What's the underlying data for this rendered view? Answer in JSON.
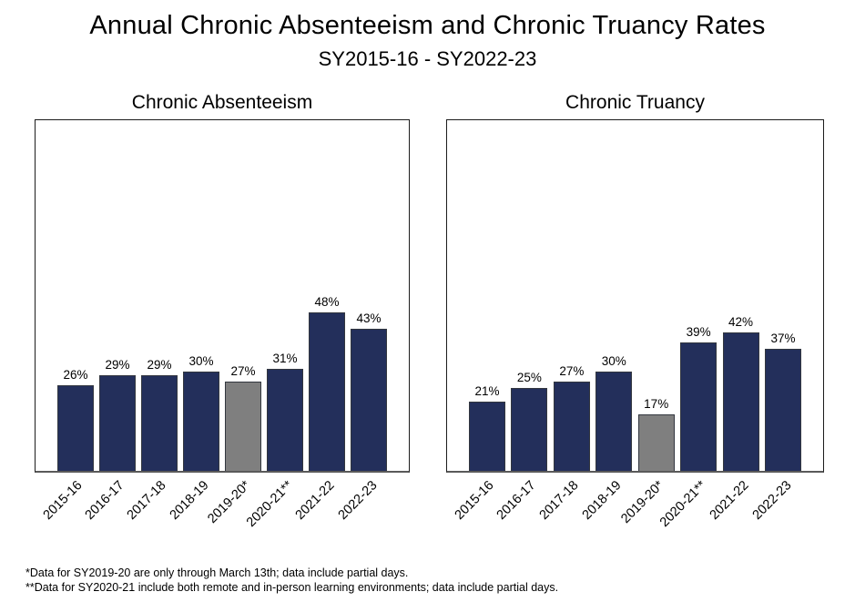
{
  "page": {
    "title": "Annual Chronic Absenteeism and Chronic Truancy Rates",
    "subtitle": "SY2015-16 - SY2022-23"
  },
  "colors": {
    "bar_primary": "#232f5b",
    "bar_partial": "#7f7f7f",
    "bar_border": "#33373f",
    "axis": "#1c1c1c"
  },
  "chart_data": [
    {
      "type": "bar",
      "title": "Chronic Absenteeism",
      "categories": [
        "2015-16",
        "2016-17",
        "2017-18",
        "2018-19",
        "2019-20*",
        "2020-21**",
        "2021-22",
        "2022-23"
      ],
      "values": [
        26,
        29,
        29,
        30,
        27,
        31,
        48,
        43
      ],
      "value_labels": [
        "26%",
        "29%",
        "29%",
        "30%",
        "27%",
        "31%",
        "48%",
        "43%"
      ],
      "partial_year_index": 4,
      "xlabel": "",
      "ylabel": "",
      "ylim": [
        0,
        107
      ],
      "grid": false,
      "legend": "none"
    },
    {
      "type": "bar",
      "title": "Chronic Truancy",
      "categories": [
        "2015-16",
        "2016-17",
        "2017-18",
        "2018-19",
        "2019-20*",
        "2020-21**",
        "2021-22",
        "2022-23"
      ],
      "values": [
        21,
        25,
        27,
        30,
        17,
        39,
        42,
        37
      ],
      "value_labels": [
        "21%",
        "25%",
        "27%",
        "30%",
        "17%",
        "39%",
        "42%",
        "37%"
      ],
      "partial_year_index": 4,
      "xlabel": "",
      "ylabel": "",
      "ylim": [
        0,
        107
      ],
      "grid": false,
      "legend": "none"
    }
  ],
  "footnotes": [
    "*Data for SY2019-20 are only through March 13th; data include partial days.",
    "**Data for SY2020-21 include both remote and in-person learning environments; data include partial days."
  ]
}
